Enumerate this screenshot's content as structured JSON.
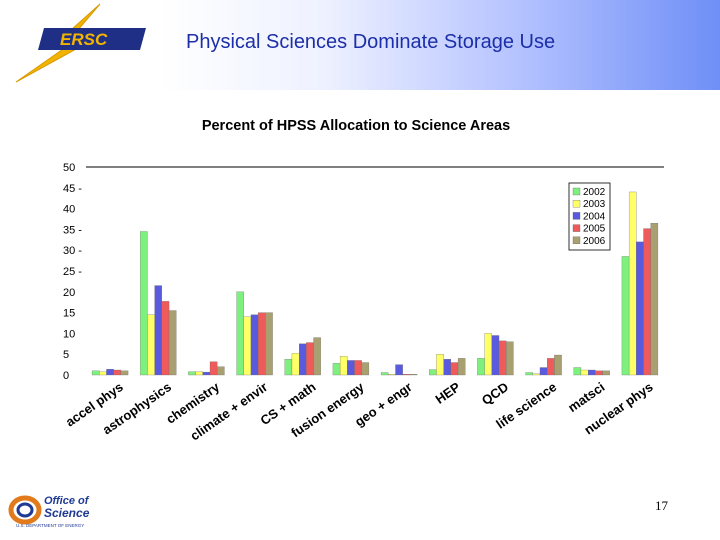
{
  "header": {
    "title": "Physical Sciences Dominate Storage Use",
    "logo_text": "ERSC",
    "logo_icon": "nersc-lightning-logo-icon"
  },
  "footer": {
    "logo_line1": "Office of",
    "logo_line2": "Science",
    "logo_line3": "U.S. DEPARTMENT OF ENERGY",
    "logo_icon": "office-of-science-logo-icon",
    "page_number": "17"
  },
  "chart_data": {
    "type": "bar",
    "title": "Percent of HPSS Allocation to Science Areas",
    "xlabel": "",
    "ylabel": "",
    "ylim": [
      0,
      50
    ],
    "yticks": [
      "0",
      "5",
      "10",
      "15",
      "20",
      "25 -",
      "30 -",
      "35 -",
      "40",
      "45 -",
      "50"
    ],
    "grid": false,
    "legend_position": "top-right",
    "categories": [
      "accel phys",
      "astrophysics",
      "chemistry",
      "climate + envir",
      "CS + math",
      "fusion energy",
      "geo + engr",
      "HEP",
      "QCD",
      "life science",
      "matsci",
      "nuclear phys"
    ],
    "series": [
      {
        "name": "2002",
        "color": "#7ef07e",
        "values": [
          1,
          34.5,
          0.8,
          20,
          3.8,
          2.8,
          0.6,
          1.3,
          4,
          0.6,
          1.8,
          28.5
        ]
      },
      {
        "name": "2003",
        "color": "#ffff66",
        "values": [
          0.8,
          14.5,
          0.8,
          14,
          5.2,
          4.5,
          0.2,
          5,
          10,
          0.3,
          1.2,
          44
        ]
      },
      {
        "name": "2004",
        "color": "#5a5adf",
        "values": [
          1.4,
          21.5,
          0.7,
          14.5,
          7.5,
          3.5,
          2.5,
          3.8,
          9.5,
          1.8,
          1.2,
          32
        ]
      },
      {
        "name": "2005",
        "color": "#ef5a5a",
        "values": [
          1.2,
          17.7,
          3.2,
          15,
          7.8,
          3.5,
          0.2,
          3,
          8.2,
          4,
          1,
          35.2
        ]
      },
      {
        "name": "2006",
        "color": "#a8a070",
        "values": [
          1,
          15.5,
          2,
          15,
          9,
          3,
          0.2,
          4,
          8,
          4.8,
          1,
          36.5
        ]
      }
    ]
  }
}
